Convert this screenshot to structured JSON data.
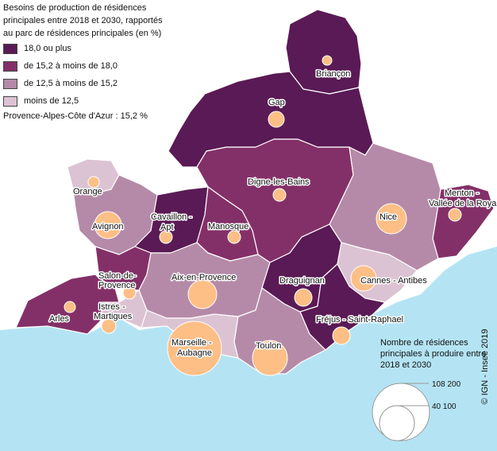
{
  "legend": {
    "title": "Besoins de production de résidences principales entre 2018 et 2030, rapportés au parc de résidences principales (en %)",
    "classes": [
      {
        "label": "18,0 ou plus",
        "color": "#5a1a55"
      },
      {
        "label": "de 15,2 à moins de 18,0",
        "color": "#843068"
      },
      {
        "label": "de 12,5 à moins de 15,2",
        "color": "#b58aa8"
      },
      {
        "label": "moins de 12,5",
        "color": "#dcc3d3"
      }
    ],
    "region_value": "Provence-Alpes-Côte d'Azur : 15,2 %"
  },
  "zones": [
    {
      "name": "Briançon",
      "class": 0
    },
    {
      "name": "Gap",
      "class": 0
    },
    {
      "name": "Digne-les-Bains",
      "class": 1
    },
    {
      "name": "Menton - Vallée de la Roya",
      "class": 1
    },
    {
      "name": "Nice",
      "class": 2
    },
    {
      "name": "Orange",
      "class": 3
    },
    {
      "name": "Avignon",
      "class": 2
    },
    {
      "name": "Cavaillon - Apt",
      "class": 0
    },
    {
      "name": "Manosque",
      "class": 1
    },
    {
      "name": "Salon-de-Provence",
      "class": 1
    },
    {
      "name": "Aix-en-Provence",
      "class": 2
    },
    {
      "name": "Draguignan",
      "class": 0
    },
    {
      "name": "Cannes - Antibes",
      "class": 3
    },
    {
      "name": "Arles",
      "class": 1
    },
    {
      "name": "Istres - Martigues",
      "class": 3
    },
    {
      "name": "Fréjus - Saint-Raphael",
      "class": 0
    },
    {
      "name": "Marseille - Aubagne",
      "class": 3
    },
    {
      "name": "Toulon",
      "class": 2
    }
  ],
  "circle_legend": {
    "title": "Nombre de résidences principales à produire entre 2018 et 2030",
    "max_label": "108 200",
    "min_label": "40 100",
    "max_value": 108200,
    "min_value": 40100
  },
  "colors": {
    "sea": "#b4e4f4",
    "circle_fill": "#fdbf86",
    "circle_stroke": "#ffffff",
    "border": "#ffffff"
  },
  "copyright": "© IGN - Insee 2019"
}
